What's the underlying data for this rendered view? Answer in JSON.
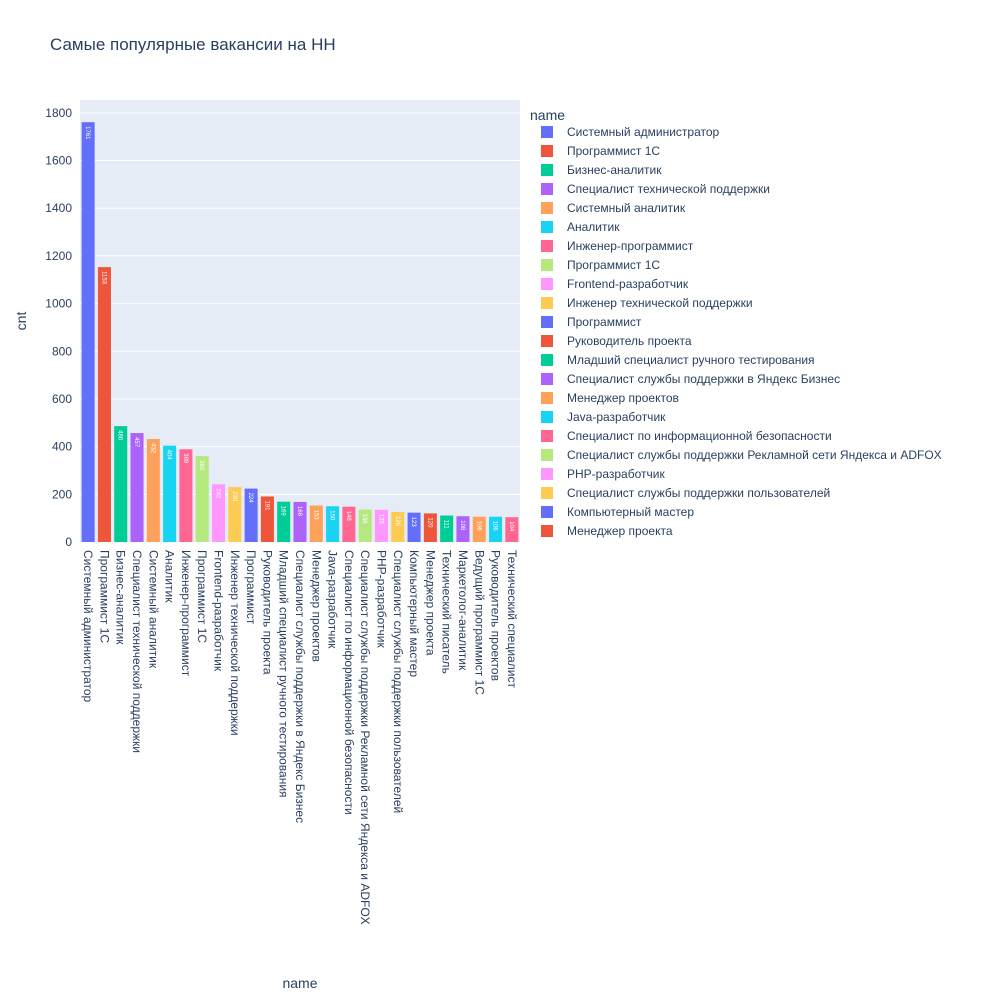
{
  "chart_data": {
    "type": "bar",
    "title": "Самые популярные вакансии на HH",
    "xlabel": "name",
    "ylabel": "cnt",
    "legend_title": "name",
    "legend_position": "right",
    "ylim": [
      0,
      1854
    ],
    "y_ticks": [
      0,
      200,
      400,
      600,
      800,
      1000,
      1200,
      1400,
      1600,
      1800
    ],
    "grid": true,
    "colors": [
      "#636efa",
      "#EF553B",
      "#00cc96",
      "#ab63fa",
      "#FFA15A",
      "#19d3f3",
      "#FF6692",
      "#B6E880",
      "#FF97FF",
      "#FECB52"
    ],
    "plot_bg": "#e5ecf6",
    "bars": [
      {
        "name": "Системный администратор",
        "value": 1761
      },
      {
        "name": "Программист 1С",
        "value": 1153
      },
      {
        "name": "Бизнес-аналитик",
        "value": 486
      },
      {
        "name": "Специалист технической поддержки",
        "value": 457
      },
      {
        "name": "Системный аналитик",
        "value": 432
      },
      {
        "name": "Аналитик",
        "value": 404
      },
      {
        "name": "Инженер-программист",
        "value": 389
      },
      {
        "name": "Программист 1C",
        "value": 360
      },
      {
        "name": "Frontend-разработчик",
        "value": 242
      },
      {
        "name": "Инженер технической поддержки",
        "value": 230
      },
      {
        "name": "Программист",
        "value": 224
      },
      {
        "name": "Руководитель проекта",
        "value": 191
      },
      {
        "name": "Младший специалист ручного тестирования",
        "value": 169
      },
      {
        "name": "Специалист службы поддержки в Яндекс Бизнес",
        "value": 168
      },
      {
        "name": "Менеджер проектов",
        "value": 153
      },
      {
        "name": "Java-разработчик",
        "value": 150
      },
      {
        "name": "Специалист по информационной безопасности",
        "value": 148
      },
      {
        "name": "Специалист службы поддержки Рекламной сети Яндекса и ADFOX",
        "value": 136
      },
      {
        "name": "PHP-разработчик",
        "value": 135
      },
      {
        "name": "Специалист службы поддержки пользователей",
        "value": 126
      },
      {
        "name": "Компьютерный мастер",
        "value": 123
      },
      {
        "name": "Менеджер проекта",
        "value": 120
      },
      {
        "name": "Технический писатель",
        "value": 111
      },
      {
        "name": "Маркетолог-аналитик",
        "value": 108
      },
      {
        "name": "Ведущий программист 1С",
        "value": 106
      },
      {
        "name": "Руководитель проектов",
        "value": 106
      },
      {
        "name": "Технический специалист",
        "value": 104
      }
    ],
    "legend_count": 22
  }
}
